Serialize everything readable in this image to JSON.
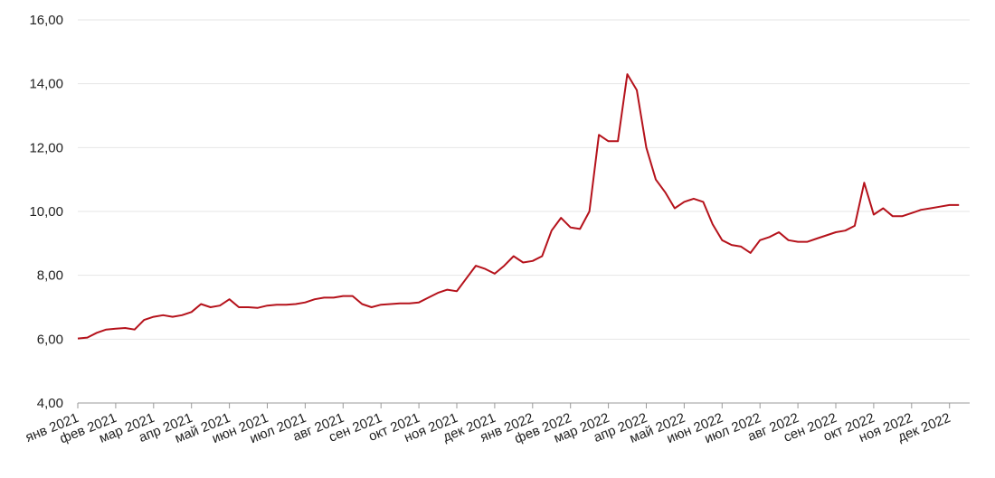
{
  "chart_data": {
    "type": "line",
    "categories": [
      "янв 2021",
      null,
      null,
      null,
      "фев 2021",
      null,
      null,
      null,
      "мар 2021",
      null,
      null,
      null,
      "апр 2021",
      null,
      null,
      null,
      "май 2021",
      null,
      null,
      null,
      "июн 2021",
      null,
      null,
      null,
      "июл 2021",
      null,
      null,
      null,
      "авг 2021",
      null,
      null,
      null,
      "сен 2021",
      null,
      null,
      null,
      "окт 2021",
      null,
      null,
      null,
      "ноя 2021",
      null,
      null,
      null,
      "дек 2021",
      null,
      null,
      null,
      "янв 2022",
      null,
      null,
      null,
      "фев 2022",
      null,
      null,
      null,
      "мар 2022",
      null,
      null,
      null,
      "апр 2022",
      null,
      null,
      null,
      "май 2022",
      null,
      null,
      null,
      "июн 2022",
      null,
      null,
      null,
      "июл 2022",
      null,
      null,
      null,
      "авг 2022",
      null,
      null,
      null,
      "сен 2022",
      null,
      null,
      null,
      "окт 2022",
      null,
      null,
      null,
      "ноя 2022",
      null,
      null,
      null,
      "дек 2022",
      null
    ],
    "series": [
      {
        "color": "#b5121b",
        "values": [
          6.02,
          6.05,
          6.2,
          6.3,
          6.33,
          6.35,
          6.3,
          6.6,
          6.7,
          6.75,
          6.7,
          6.75,
          6.85,
          7.1,
          7.0,
          7.05,
          7.25,
          7.0,
          7.0,
          6.98,
          7.05,
          7.08,
          7.08,
          7.1,
          7.15,
          7.25,
          7.3,
          7.3,
          7.35,
          7.35,
          7.1,
          7.0,
          7.08,
          7.1,
          7.12,
          7.12,
          7.15,
          7.3,
          7.45,
          7.55,
          7.5,
          7.9,
          8.3,
          8.2,
          8.05,
          8.3,
          8.6,
          8.4,
          8.45,
          8.6,
          9.4,
          9.8,
          9.5,
          9.45,
          10.0,
          12.4,
          12.2,
          12.2,
          14.3,
          13.8,
          12.0,
          11.0,
          10.6,
          10.1,
          10.3,
          10.4,
          10.3,
          9.6,
          9.1,
          8.95,
          8.9,
          8.7,
          9.1,
          9.2,
          9.35,
          9.1,
          9.05,
          9.05,
          9.15,
          9.25,
          9.35,
          9.4,
          9.55,
          10.9,
          9.9,
          10.1,
          9.85,
          9.85,
          9.95,
          10.05,
          10.1,
          10.15,
          10.2,
          10.2
        ]
      }
    ],
    "ylim": [
      4,
      16
    ],
    "yticks": [
      {
        "value": 4,
        "label": "4,00"
      },
      {
        "value": 6,
        "label": "6,00"
      },
      {
        "value": 8,
        "label": "8,00"
      },
      {
        "value": 10,
        "label": "10,00"
      },
      {
        "value": 12,
        "label": "12,00"
      },
      {
        "value": 14,
        "label": "14,00"
      },
      {
        "value": 16,
        "label": "16,00"
      }
    ],
    "grid": true
  }
}
